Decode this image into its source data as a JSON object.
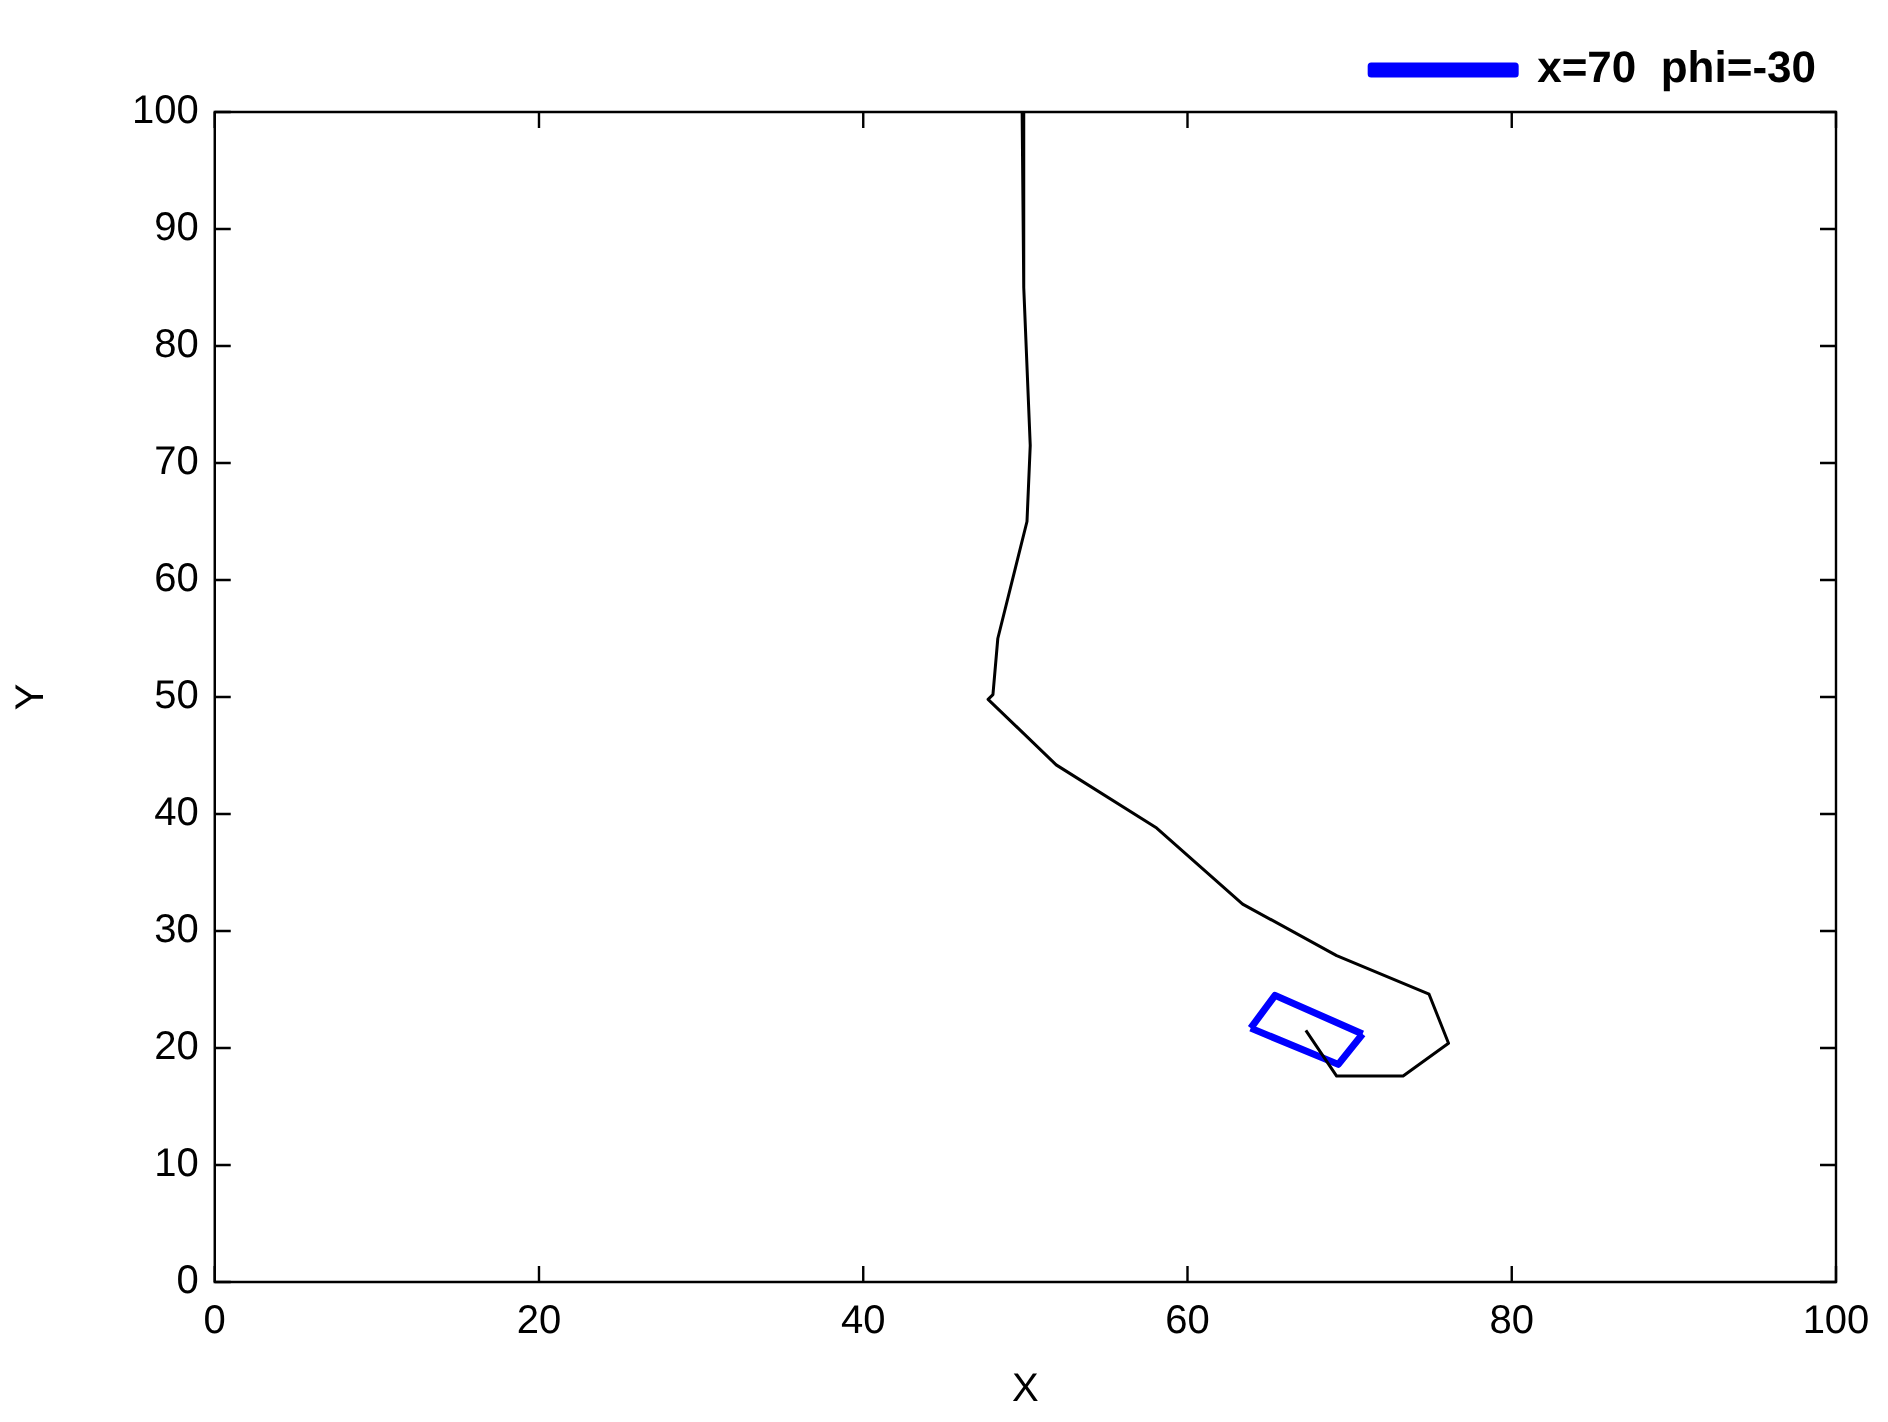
{
  "chart_data": {
    "type": "line",
    "xlabel": "X",
    "ylabel": "Y",
    "xlim": [
      0,
      100
    ],
    "ylim": [
      0,
      100
    ],
    "xticks": [
      0,
      20,
      40,
      60,
      80,
      100
    ],
    "yticks": [
      0,
      10,
      20,
      30,
      40,
      50,
      60,
      70,
      80,
      90,
      100
    ],
    "grid": false,
    "legend": "top right",
    "marker": "none",
    "line_style": "solid",
    "series": [
      {
        "color": "#000000",
        "x": [
          49.8,
          49.9,
          50.3,
          50.1,
          48.3,
          48.0,
          47.7,
          51.9,
          58.1,
          63.4,
          69.2,
          74.9,
          76.1,
          73.3,
          69.2,
          67.3
        ],
        "values": [
          100,
          85,
          71.5,
          65,
          55,
          50.2,
          49.8,
          44.2,
          38.8,
          32.3,
          27.9,
          24.6,
          20.4,
          17.6,
          17.6,
          21.5
        ]
      },
      {
        "name": "x=70  phi=-30",
        "color": "#0000ff",
        "x": [
          63.9,
          65.4,
          70.8
        ],
        "values": [
          21.7,
          24.5,
          21.2
        ]
      },
      {
        "color": "#0000ff",
        "x": [
          63.9,
          69.3,
          70.8
        ],
        "values": [
          21.7,
          18.6,
          21.2
        ]
      }
    ]
  }
}
